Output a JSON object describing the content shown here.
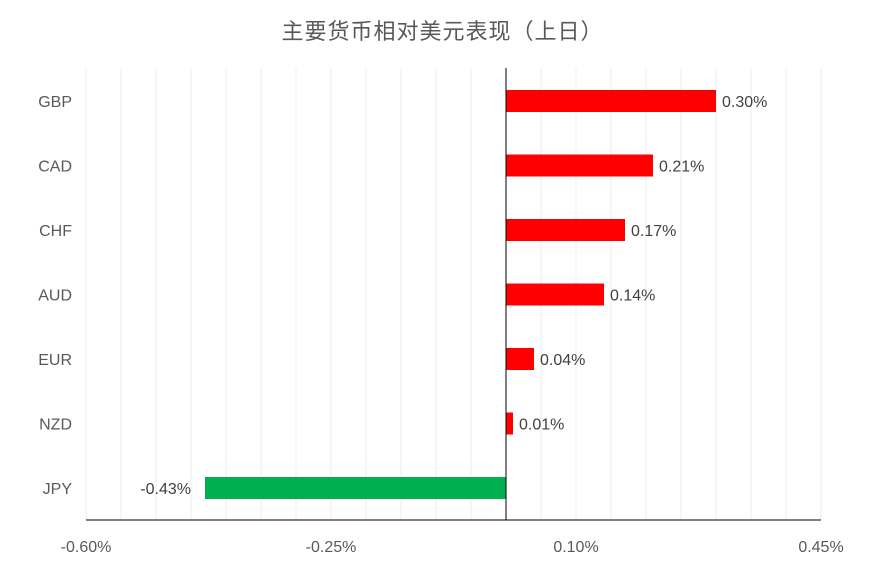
{
  "chart_data": {
    "type": "bar",
    "orientation": "horizontal",
    "title": "主要货币相对美元表现（上日）",
    "xlabel": "",
    "ylabel": "",
    "categories": [
      "GBP",
      "CAD",
      "CHF",
      "AUD",
      "EUR",
      "NZD",
      "JPY"
    ],
    "values": [
      0.3,
      0.21,
      0.17,
      0.14,
      0.04,
      0.01,
      -0.43
    ],
    "data_labels": [
      "0.30%",
      "0.21%",
      "0.17%",
      "0.14%",
      "0.04%",
      "0.01%",
      "-0.43%"
    ],
    "xlim": [
      -0.6,
      0.45
    ],
    "x_ticks": [
      -0.6,
      -0.25,
      0.1,
      0.45
    ],
    "x_tick_labels": [
      "-0.60%",
      "-0.25%",
      "0.10%",
      "0.45%"
    ],
    "grid": "vertical-minor",
    "legend": "none",
    "colors": {
      "positive": "#ff0000",
      "negative": "#00b050",
      "grid": "#ececec",
      "axis": "#000000"
    }
  }
}
